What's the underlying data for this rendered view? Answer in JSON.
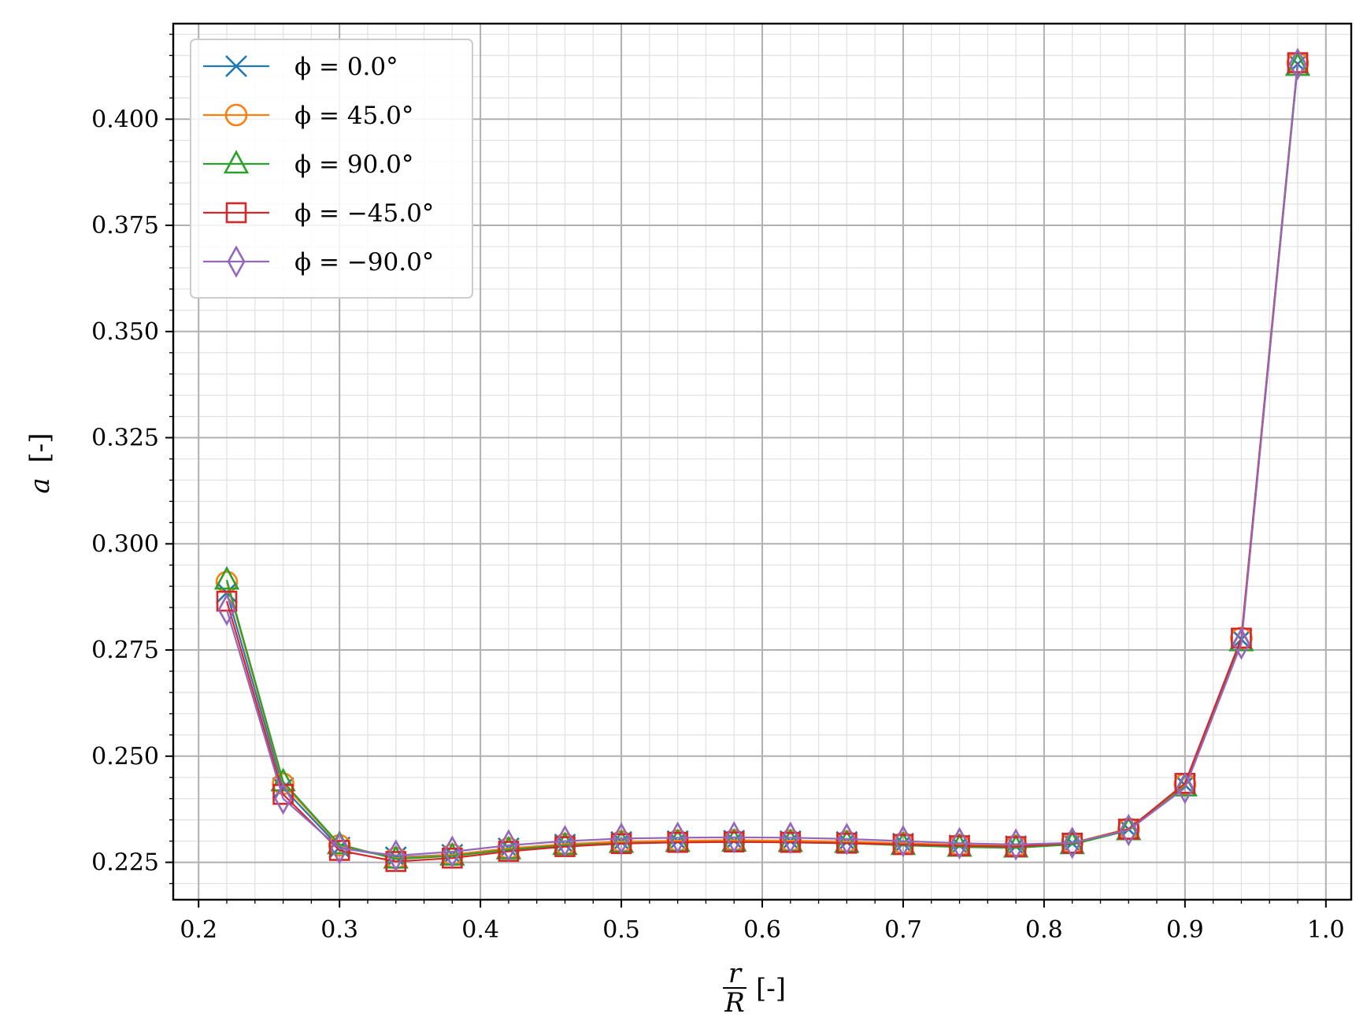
{
  "chart_data": {
    "type": "line",
    "xlabel_num": "r",
    "xlabel_den": "R",
    "xlabel_unit": "[-]",
    "ylabel_var": "a",
    "ylabel_unit": "[-]",
    "xlim": [
      0.182,
      1.018
    ],
    "ylim": [
      0.2162,
      0.4225
    ],
    "x_ticks": [
      "0.2",
      "0.3",
      "0.4",
      "0.5",
      "0.6",
      "0.7",
      "0.8",
      "0.9",
      "1.0"
    ],
    "y_ticks": [
      "0.225",
      "0.250",
      "0.275",
      "0.300",
      "0.325",
      "0.350",
      "0.375",
      "0.400"
    ],
    "grid": true,
    "minor_grid": true,
    "legend_position": "top-left",
    "x": [
      0.22,
      0.26,
      0.3,
      0.34,
      0.38,
      0.42,
      0.46,
      0.5,
      0.54,
      0.58,
      0.62,
      0.66,
      0.7,
      0.74,
      0.78,
      0.82,
      0.86,
      0.9,
      0.94,
      0.98
    ],
    "series": [
      {
        "name": "ϕ = 0.0°",
        "marker": "x",
        "color": "#1f77b4",
        "values": [
          0.2885,
          0.2425,
          0.2285,
          0.2262,
          0.2268,
          0.2283,
          0.2292,
          0.2298,
          0.23,
          0.2301,
          0.23,
          0.2298,
          0.2294,
          0.229,
          0.2288,
          0.2295,
          0.2328,
          0.2432,
          0.2775,
          0.413
        ]
      },
      {
        "name": "ϕ = 45.0°",
        "marker": "circle",
        "color": "#ff7f0e",
        "values": [
          0.291,
          0.2435,
          0.229,
          0.226,
          0.2268,
          0.2283,
          0.2293,
          0.2299,
          0.2301,
          0.2302,
          0.2301,
          0.2299,
          0.2295,
          0.2291,
          0.2289,
          0.2296,
          0.2329,
          0.2434,
          0.2778,
          0.4132
        ]
      },
      {
        "name": "ϕ = 90.0°",
        "marker": "triangle",
        "color": "#2ca02c",
        "values": [
          0.2915,
          0.244,
          0.2292,
          0.2258,
          0.2265,
          0.228,
          0.229,
          0.2295,
          0.2297,
          0.2298,
          0.2297,
          0.2295,
          0.229,
          0.2286,
          0.2284,
          0.2292,
          0.2325,
          0.2428,
          0.277,
          0.4125
        ]
      },
      {
        "name": "ϕ = −45.0°",
        "marker": "square",
        "color": "#d62728",
        "values": [
          0.2865,
          0.241,
          0.2278,
          0.2252,
          0.226,
          0.2276,
          0.2287,
          0.2294,
          0.2297,
          0.2298,
          0.2297,
          0.2295,
          0.2292,
          0.2289,
          0.2287,
          0.2295,
          0.2328,
          0.2436,
          0.2778,
          0.4133
        ]
      },
      {
        "name": "ϕ = −90.0°",
        "marker": "diamond",
        "color": "#9467bd",
        "values": [
          0.2845,
          0.24,
          0.2283,
          0.2266,
          0.2275,
          0.229,
          0.23,
          0.2306,
          0.2308,
          0.2309,
          0.2308,
          0.2305,
          0.23,
          0.2295,
          0.2292,
          0.2296,
          0.2326,
          0.2425,
          0.2765,
          0.413
        ]
      }
    ]
  }
}
